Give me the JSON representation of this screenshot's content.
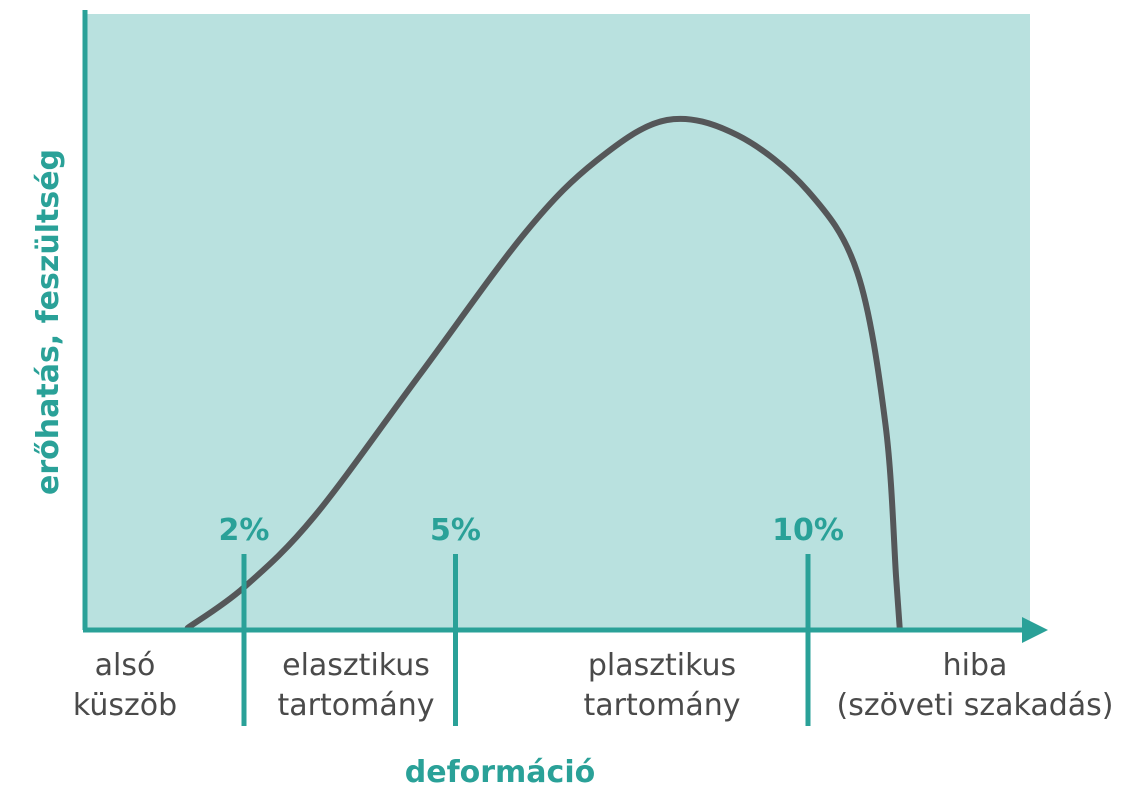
{
  "colors": {
    "plot_background": "#b9e1df",
    "axis": "#2aa198",
    "curve": "#555759",
    "text": "#4a4a4a"
  },
  "chart_data": {
    "type": "line",
    "title": "",
    "xlabel": "deformáció",
    "ylabel": "erőhatás, feszültség",
    "x_axis_ticks_shown": false,
    "y_axis_ticks_shown": false,
    "grid": false,
    "series": [
      {
        "values_note": "qualitative stress-strain curve; x in % deformation, y relative stress 0-1",
        "x": [
          1.2,
          2.0,
          3.0,
          4.5,
          6.0,
          7.0,
          8.0,
          9.0,
          10.0,
          10.7,
          11.1,
          11.25,
          11.3
        ],
        "y": [
          0.0,
          0.08,
          0.22,
          0.5,
          0.78,
          0.92,
          1.0,
          0.97,
          0.86,
          0.7,
          0.4,
          0.1,
          0.0
        ]
      }
    ],
    "markers": [
      {
        "label": "2%",
        "x": 2
      },
      {
        "label": "5%",
        "x": 5
      },
      {
        "label": "10%",
        "x": 10
      }
    ],
    "regions": [
      {
        "line1": "alsó",
        "line2": "küszöb"
      },
      {
        "line1": "elasztikus",
        "line2": "tartomány"
      },
      {
        "line1": "plasztikus",
        "line2": "tartomány"
      },
      {
        "line1": "hiba",
        "line2": "(szöveti szakadás)"
      }
    ]
  }
}
